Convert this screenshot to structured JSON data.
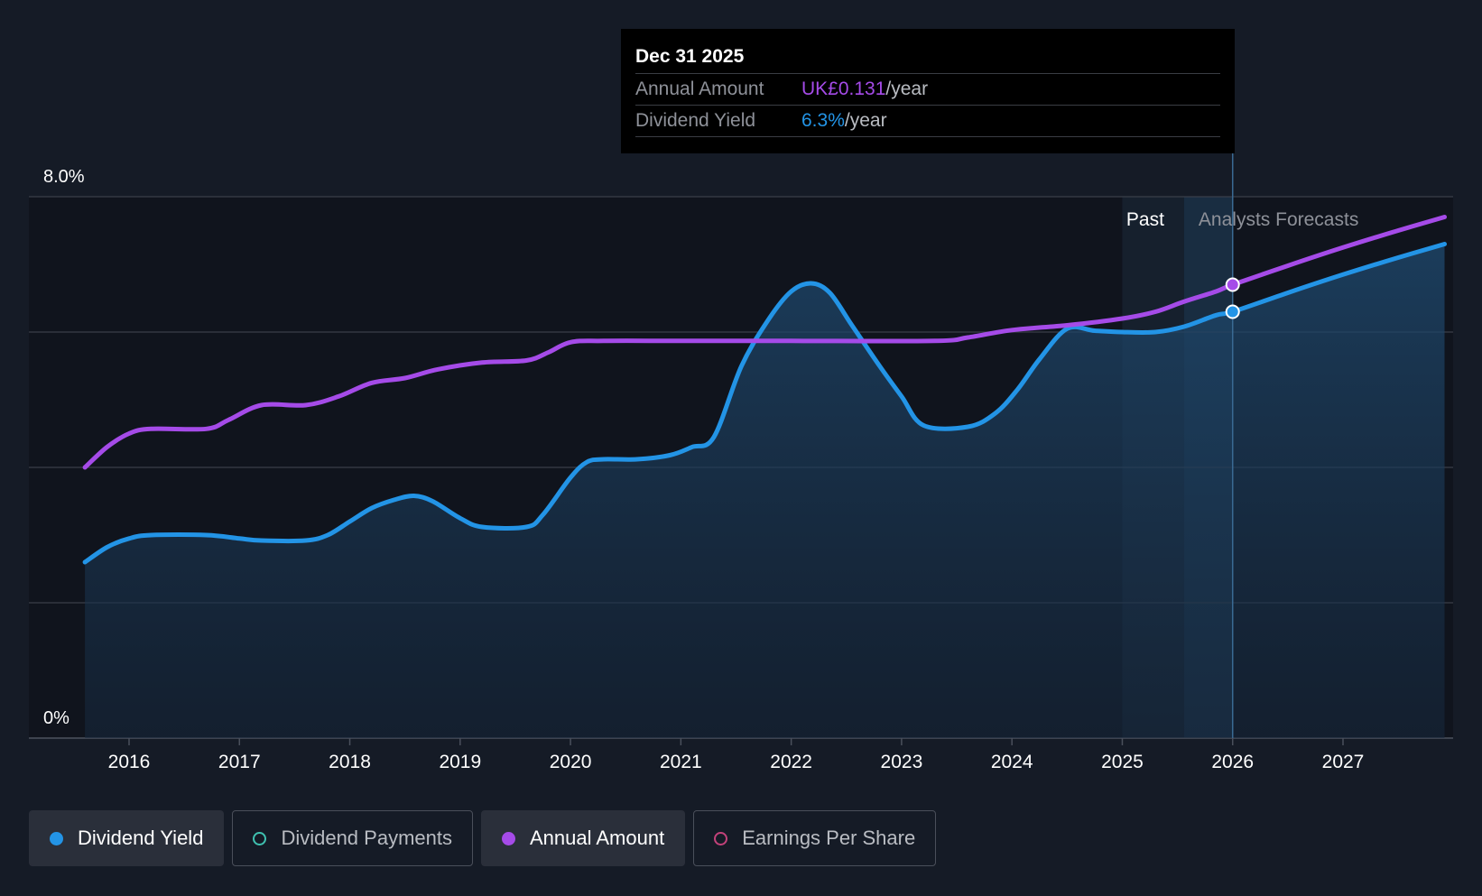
{
  "chart_data": {
    "type": "line",
    "y_axis": {
      "top_label": "8.0%",
      "bottom_label": "0%",
      "ylim": [
        0,
        8.0
      ],
      "gridlines": [
        0,
        2,
        4,
        6,
        8
      ]
    },
    "x_axis": {
      "tick_labels": [
        "2016",
        "2017",
        "2018",
        "2019",
        "2020",
        "2021",
        "2022",
        "2023",
        "2024",
        "2025",
        "2026",
        "2027"
      ],
      "xlim": [
        2015.48,
        2027.92
      ]
    },
    "regions": {
      "past_label": "Past",
      "forecast_label": "Analysts Forecasts",
      "past_band": [
        2025.0,
        2025.56
      ],
      "forecast_band": [
        2025.56,
        2026.0
      ]
    },
    "series": [
      {
        "name": "Dividend Yield",
        "color": "#2394e6",
        "area": true,
        "points": [
          [
            2015.6,
            2.6
          ],
          [
            2015.8,
            2.82
          ],
          [
            2016.0,
            2.95
          ],
          [
            2016.2,
            3.0
          ],
          [
            2016.7,
            3.0
          ],
          [
            2017.0,
            2.95
          ],
          [
            2017.2,
            2.92
          ],
          [
            2017.6,
            2.92
          ],
          [
            2017.8,
            3.0
          ],
          [
            2018.0,
            3.2
          ],
          [
            2018.2,
            3.4
          ],
          [
            2018.4,
            3.52
          ],
          [
            2018.58,
            3.58
          ],
          [
            2018.75,
            3.5
          ],
          [
            2019.0,
            3.25
          ],
          [
            2019.2,
            3.12
          ],
          [
            2019.6,
            3.12
          ],
          [
            2019.75,
            3.3
          ],
          [
            2020.0,
            3.85
          ],
          [
            2020.15,
            4.08
          ],
          [
            2020.3,
            4.12
          ],
          [
            2020.6,
            4.12
          ],
          [
            2020.9,
            4.18
          ],
          [
            2021.1,
            4.3
          ],
          [
            2021.3,
            4.45
          ],
          [
            2021.55,
            5.5
          ],
          [
            2021.8,
            6.2
          ],
          [
            2022.0,
            6.6
          ],
          [
            2022.18,
            6.72
          ],
          [
            2022.35,
            6.58
          ],
          [
            2022.55,
            6.1
          ],
          [
            2022.8,
            5.5
          ],
          [
            2023.0,
            5.05
          ],
          [
            2023.2,
            4.62
          ],
          [
            2023.6,
            4.6
          ],
          [
            2023.85,
            4.8
          ],
          [
            2024.05,
            5.15
          ],
          [
            2024.25,
            5.6
          ],
          [
            2024.5,
            6.05
          ],
          [
            2024.75,
            6.02
          ],
          [
            2025.0,
            6.0
          ],
          [
            2025.3,
            6.0
          ],
          [
            2025.56,
            6.08
          ],
          [
            2025.85,
            6.25
          ],
          [
            2026.0,
            6.3
          ],
          [
            2026.5,
            6.58
          ],
          [
            2027.0,
            6.85
          ],
          [
            2027.5,
            7.1
          ],
          [
            2027.92,
            7.3
          ]
        ]
      },
      {
        "name": "Annual Amount",
        "color": "#a54be8",
        "area": false,
        "points": [
          [
            2015.6,
            4.0
          ],
          [
            2015.8,
            4.3
          ],
          [
            2016.0,
            4.5
          ],
          [
            2016.2,
            4.57
          ],
          [
            2016.7,
            4.57
          ],
          [
            2016.9,
            4.7
          ],
          [
            2017.2,
            4.92
          ],
          [
            2017.6,
            4.92
          ],
          [
            2017.9,
            5.05
          ],
          [
            2018.2,
            5.25
          ],
          [
            2018.5,
            5.32
          ],
          [
            2018.8,
            5.45
          ],
          [
            2019.2,
            5.55
          ],
          [
            2019.6,
            5.58
          ],
          [
            2019.8,
            5.7
          ],
          [
            2020.0,
            5.85
          ],
          [
            2020.3,
            5.87
          ],
          [
            2021.0,
            5.87
          ],
          [
            2022.0,
            5.87
          ],
          [
            2023.3,
            5.87
          ],
          [
            2023.6,
            5.92
          ],
          [
            2024.0,
            6.03
          ],
          [
            2024.5,
            6.1
          ],
          [
            2025.0,
            6.2
          ],
          [
            2025.3,
            6.3
          ],
          [
            2025.56,
            6.45
          ],
          [
            2025.85,
            6.6
          ],
          [
            2026.0,
            6.7
          ],
          [
            2026.5,
            6.98
          ],
          [
            2027.0,
            7.25
          ],
          [
            2027.5,
            7.5
          ],
          [
            2027.92,
            7.7
          ]
        ]
      }
    ],
    "highlight_x": 2026.0,
    "highlight_points": [
      {
        "series": "Annual Amount",
        "y": 6.7
      },
      {
        "series": "Dividend Yield",
        "y": 6.3
      }
    ]
  },
  "tooltip": {
    "date": "Dec 31 2025",
    "rows": [
      {
        "label": "Annual Amount",
        "value": "UK£0.131",
        "unit": "/year",
        "color": "#a54be8"
      },
      {
        "label": "Dividend Yield",
        "value": "6.3%",
        "unit": "/year",
        "color": "#2394e6"
      }
    ]
  },
  "legend": [
    {
      "label": "Dividend Yield",
      "color": "#2394e6",
      "active": true,
      "filled": true
    },
    {
      "label": "Dividend Payments",
      "color": "#3fc1b0",
      "active": false,
      "filled": false
    },
    {
      "label": "Annual Amount",
      "color": "#a54be8",
      "active": true,
      "filled": true
    },
    {
      "label": "Earnings Per Share",
      "color": "#c2427a",
      "active": false,
      "filled": false
    }
  ],
  "colors": {
    "background": "#151b26",
    "plot_background": "#10141d",
    "grid": "#3a3f4a",
    "axis_text": "#ffffff"
  }
}
